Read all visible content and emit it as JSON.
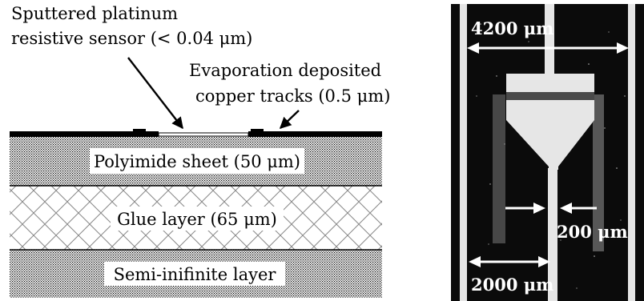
{
  "cross_section": {
    "annotations": {
      "sensor_line1": "Sputtered platinum",
      "sensor_line2": "resistive sensor (< 0.04 μm)",
      "tracks_line1": "Evaporation deposited",
      "tracks_line2": "copper tracks (0.5 μm)"
    },
    "layers": [
      {
        "label": "Polyimide sheet (50 μm)",
        "fill": "dots"
      },
      {
        "label": "Glue layer (65 μm)",
        "fill": "crosshatch"
      },
      {
        "label": "Semi-inifinite layer",
        "fill": "dots"
      }
    ]
  },
  "photo": {
    "dim_4200": "4200 μm",
    "dim_200": "200 μm",
    "dim_2000": "2000 μm"
  },
  "colors": {
    "ink": "#000000",
    "photo_background": "#0b0b0b",
    "photo_metal": "#e6e6e6"
  }
}
